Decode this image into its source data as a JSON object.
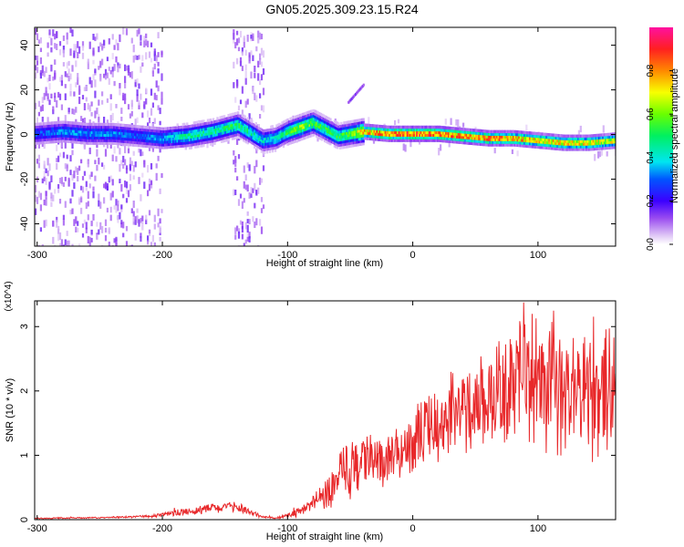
{
  "title": "GN05.2025.309.23.15.R24",
  "colors": {
    "snr_line": "#e8282a",
    "axis": "#000000",
    "background": "#ffffff"
  },
  "chart_data": [
    {
      "type": "heatmap",
      "title": "GN05.2025.309.23.15.R24",
      "xlabel": "Height of straight line (km)",
      "ylabel": "Frequency (Hz)",
      "xlim": [
        -302,
        162
      ],
      "ylim": [
        -50,
        48
      ],
      "xticks": [
        -300,
        -200,
        -100,
        0,
        100
      ],
      "xtick_labels": [
        "-300",
        "-200",
        "-100",
        "0",
        "100"
      ],
      "yticks": [
        -40,
        -20,
        0,
        20,
        40
      ],
      "ytick_labels": [
        "-40",
        "-20",
        "0",
        "20",
        "40"
      ],
      "colorbar": {
        "label": "Normalized spectral amplitude",
        "range": [
          0.0,
          1.0
        ],
        "ticks": [
          0.0,
          0.2,
          0.4,
          0.6,
          0.8
        ],
        "tick_labels": [
          "0.0",
          "0.2",
          "0.4",
          "0.6",
          "0.8"
        ]
      },
      "ridge_frequency_hz": {
        "x": [
          -302,
          -280,
          -260,
          -240,
          -220,
          -200,
          -180,
          -160,
          -140,
          -120,
          -110,
          -100,
          -90,
          -80,
          -70,
          -60,
          -50,
          -40,
          -20,
          0,
          20,
          40,
          60,
          80,
          100,
          120,
          140,
          162
        ],
        "freq": [
          1,
          2,
          1,
          1,
          0,
          -1,
          0,
          2,
          5,
          -2,
          -1,
          2,
          4,
          6,
          3,
          0,
          1,
          2,
          1,
          1,
          1,
          0,
          -1,
          -1,
          -2,
          -3,
          -3,
          -2
        ],
        "amplitude": [
          0.3,
          0.35,
          0.35,
          0.35,
          0.3,
          0.38,
          0.5,
          0.5,
          0.55,
          0.42,
          0.45,
          0.55,
          0.65,
          0.6,
          0.55,
          0.55,
          0.6,
          0.85,
          0.92,
          0.95,
          0.93,
          0.9,
          0.88,
          0.85,
          0.85,
          0.8,
          0.8,
          0.75
        ]
      },
      "noise_regions_km": [
        [
          -302,
          -200
        ],
        [
          -145,
          -120
        ]
      ],
      "annotation": "weak upward sweep near x=-50 to -40 km, ~15 to 23 Hz"
    },
    {
      "type": "line",
      "title": "",
      "xlabel": "Height of straight line (km)",
      "ylabel": "SNR (10 * v/v)",
      "y_multiplier": "(x10^4)",
      "xlim": [
        -302,
        162
      ],
      "ylim": [
        0,
        3.4
      ],
      "xticks": [
        -300,
        -200,
        -100,
        0,
        100
      ],
      "xtick_labels": [
        "-300",
        "-200",
        "-100",
        "0",
        "100"
      ],
      "yticks": [
        0,
        1,
        2,
        3
      ],
      "ytick_labels": [
        "0",
        "1",
        "2",
        "3"
      ],
      "series": [
        {
          "name": "SNR",
          "envelope_x": [
            -302,
            -250,
            -210,
            -190,
            -175,
            -160,
            -140,
            -130,
            -120,
            -110,
            -100,
            -90,
            -80,
            -70,
            -60,
            -50,
            -40,
            -30,
            -20,
            -10,
            0,
            10,
            20,
            30,
            40,
            50,
            60,
            70,
            80,
            90,
            100,
            110,
            120,
            130,
            140,
            150,
            162
          ],
          "envelope_y": [
            0.02,
            0.03,
            0.05,
            0.1,
            0.14,
            0.18,
            0.2,
            0.12,
            0.04,
            0.03,
            0.06,
            0.12,
            0.25,
            0.4,
            0.6,
            0.8,
            0.98,
            0.85,
            0.9,
            1.05,
            1.25,
            1.35,
            1.45,
            1.6,
            1.72,
            1.82,
            1.9,
            1.95,
            2.1,
            2.25,
            2.15,
            2.05,
            1.95,
            1.85,
            1.85,
            2.0,
            1.9
          ],
          "variability": [
            0.01,
            0.01,
            0.02,
            0.05,
            0.07,
            0.08,
            0.08,
            0.05,
            0.02,
            0.02,
            0.04,
            0.08,
            0.15,
            0.25,
            0.4,
            0.5,
            0.45,
            0.35,
            0.4,
            0.45,
            0.5,
            0.55,
            0.6,
            0.65,
            0.7,
            0.75,
            0.8,
            0.85,
            0.9,
            1.05,
            1.05,
            1.05,
            1.0,
            1.0,
            1.0,
            1.05,
            1.05
          ]
        }
      ]
    }
  ]
}
